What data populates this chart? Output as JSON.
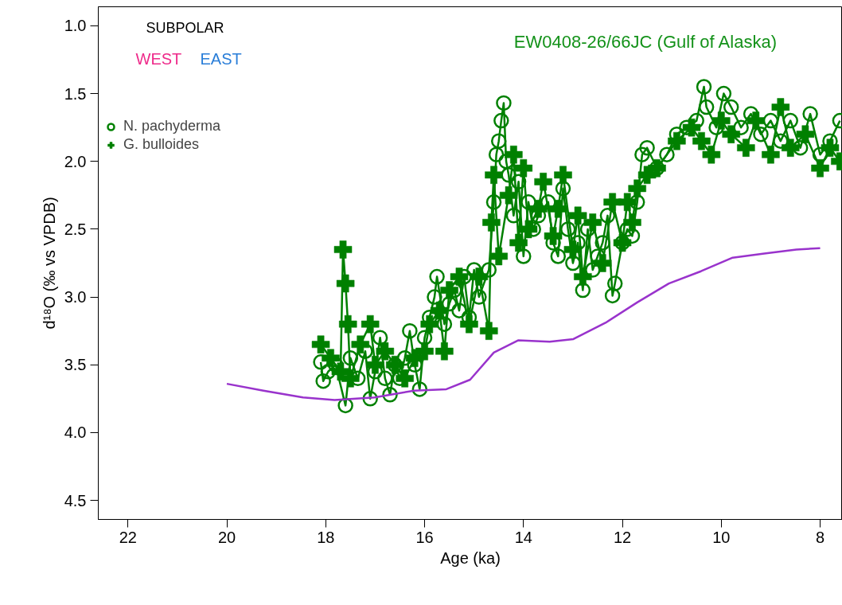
{
  "chart_data": {
    "type": "line",
    "xlabel": "Age (ka)",
    "ylabel": "d¹⁸O (‰ vs VPDB)",
    "annotations": [
      "SUBPOLAR",
      "WEST",
      "EAST",
      "EW0408-26/66JC (Gulf of Alaska)"
    ],
    "xlim": [
      22.6,
      7.55
    ],
    "xticks": [
      22,
      20,
      18,
      16,
      14,
      12,
      10,
      8
    ],
    "ylim": [
      4.64,
      0.86
    ],
    "yticks": [
      {
        "value": 1.0,
        "label": "1.0"
      },
      {
        "value": 1.5,
        "label": "1.5"
      },
      {
        "value": 2.0,
        "label": "2.0"
      },
      {
        "value": 2.5,
        "label": "2.5"
      },
      {
        "value": 3.0,
        "label": "3.0"
      },
      {
        "value": 3.5,
        "label": "3.5"
      },
      {
        "value": 4.0,
        "label": "4.0"
      },
      {
        "value": 4.5,
        "label": "4.5"
      }
    ],
    "grid": false,
    "legend": "top left",
    "series": [
      {
        "name": "N. pachyderma",
        "color": "#008000",
        "marker": "circle",
        "x": [
          18.1,
          18.05,
          17.95,
          17.8,
          17.6,
          17.5,
          17.35,
          17.2,
          17.1,
          17.0,
          16.9,
          16.8,
          16.7,
          16.6,
          16.5,
          16.4,
          16.3,
          16.2,
          16.1,
          16.0,
          15.9,
          15.8,
          15.75,
          15.6,
          15.5,
          15.4,
          15.3,
          15.2,
          15.1,
          15.0,
          14.9,
          14.7,
          14.6,
          14.55,
          14.5,
          14.45,
          14.4,
          14.35,
          14.3,
          14.2,
          14.1,
          14.0,
          13.9,
          13.8,
          13.7,
          13.5,
          13.4,
          13.3,
          13.2,
          13.1,
          13.0,
          12.9,
          12.8,
          12.7,
          12.6,
          12.5,
          12.4,
          12.3,
          12.2,
          12.15,
          12.0,
          11.9,
          11.8,
          11.7,
          11.6,
          11.5,
          11.3,
          11.1,
          10.9,
          10.7,
          10.5,
          10.35,
          10.3,
          10.1,
          9.95,
          9.8,
          9.6,
          9.4,
          9.2,
          9.0,
          8.8,
          8.6,
          8.4,
          8.2,
          8.0,
          7.8,
          7.6
        ],
        "values": [
          3.48,
          3.62,
          3.55,
          3.5,
          3.8,
          3.45,
          3.6,
          3.4,
          3.75,
          3.55,
          3.3,
          3.6,
          3.72,
          3.5,
          3.6,
          3.45,
          3.25,
          3.5,
          3.68,
          3.3,
          3.15,
          3.0,
          2.85,
          3.2,
          3.05,
          2.95,
          3.1,
          2.85,
          3.15,
          2.8,
          3.0,
          2.8,
          2.3,
          1.95,
          1.85,
          1.7,
          1.57,
          2.0,
          2.1,
          2.4,
          2.15,
          2.7,
          2.3,
          2.5,
          2.4,
          2.3,
          2.6,
          2.7,
          2.2,
          2.5,
          2.75,
          2.6,
          2.95,
          2.5,
          2.8,
          2.7,
          2.6,
          2.4,
          2.99,
          2.9,
          2.6,
          2.5,
          2.55,
          2.3,
          1.95,
          1.9,
          2.05,
          1.95,
          1.8,
          1.75,
          1.7,
          1.45,
          1.6,
          1.75,
          1.5,
          1.6,
          1.75,
          1.65,
          1.8,
          1.7,
          1.85,
          1.7,
          1.9,
          1.65,
          1.95,
          1.85,
          1.7
        ]
      },
      {
        "name": "G. bulloides",
        "color": "#008000",
        "marker": "cross",
        "x": [
          18.1,
          17.9,
          17.7,
          17.65,
          17.6,
          17.55,
          17.5,
          17.3,
          17.1,
          17.0,
          16.8,
          16.6,
          16.4,
          16.2,
          16.0,
          15.9,
          15.7,
          15.6,
          15.5,
          15.3,
          15.1,
          14.9,
          14.7,
          14.65,
          14.6,
          14.5,
          14.3,
          14.2,
          14.1,
          14.0,
          13.9,
          13.7,
          13.6,
          13.4,
          13.3,
          13.2,
          13.0,
          12.9,
          12.8,
          12.6,
          12.4,
          12.2,
          12.0,
          11.9,
          11.8,
          11.7,
          11.5,
          11.3,
          10.9,
          10.6,
          10.4,
          10.2,
          10.0,
          9.8,
          9.5,
          9.3,
          9.0,
          8.8,
          8.6,
          8.3,
          8.0,
          7.8,
          7.6
        ],
        "values": [
          3.35,
          3.45,
          3.55,
          2.65,
          2.9,
          3.2,
          3.6,
          3.35,
          3.2,
          3.5,
          3.4,
          3.5,
          3.6,
          3.45,
          3.4,
          3.2,
          3.1,
          3.4,
          2.95,
          2.85,
          3.2,
          2.85,
          3.25,
          2.45,
          2.1,
          2.7,
          2.25,
          1.95,
          2.6,
          2.05,
          2.5,
          2.35,
          2.15,
          2.55,
          2.35,
          2.1,
          2.65,
          2.4,
          2.85,
          2.45,
          2.75,
          2.3,
          2.6,
          2.3,
          2.45,
          2.2,
          2.1,
          2.05,
          1.85,
          1.75,
          1.85,
          1.95,
          1.7,
          1.8,
          1.9,
          1.7,
          1.95,
          1.6,
          1.9,
          1.8,
          2.05,
          1.9,
          2.0
        ]
      },
      {
        "color": "#9933cc",
        "marker": "none",
        "x": [
          20.0,
          19.26,
          18.46,
          17.82,
          17.01,
          16.21,
          15.56,
          15.08,
          14.6,
          14.11,
          13.47,
          12.99,
          12.34,
          11.7,
          11.06,
          10.41,
          9.77,
          9.13,
          8.48,
          8.0
        ],
        "values": [
          3.64,
          3.69,
          3.74,
          3.76,
          3.74,
          3.69,
          3.68,
          3.61,
          3.41,
          3.32,
          3.33,
          3.31,
          3.19,
          3.04,
          2.9,
          2.81,
          2.71,
          2.68,
          2.65,
          2.64
        ]
      }
    ]
  }
}
